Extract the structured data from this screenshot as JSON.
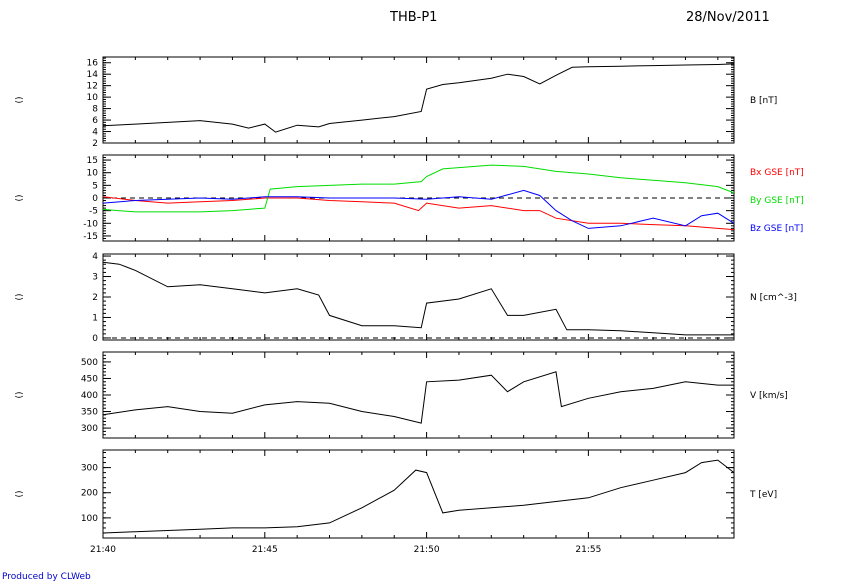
{
  "header": {
    "title": "THB-P1",
    "date": "28/Nov/2011"
  },
  "footer": {
    "credit": "Produced by CLWeb"
  },
  "chart_data": [
    {
      "type": "line",
      "panel": "B",
      "side_label": "()",
      "ylabel": "B [nT]",
      "xlim": [
        "21:40",
        "21:59:30"
      ],
      "ylim": [
        2,
        17
      ],
      "yticks": [
        2,
        4,
        6,
        8,
        10,
        12,
        14,
        16
      ],
      "series": [
        {
          "name": "B [nT]",
          "color": "#000000",
          "x": [
            "21:40",
            "21:41",
            "21:42",
            "21:43",
            "21:44",
            "21:44:30",
            "21:45",
            "21:45:20",
            "21:46",
            "21:46:40",
            "21:47",
            "21:48",
            "21:49",
            "21:49:50",
            "21:50",
            "21:50:30",
            "21:51",
            "21:52",
            "21:52:30",
            "21:53",
            "21:53:30",
            "21:54",
            "21:54:30",
            "21:55",
            "21:56",
            "21:57",
            "21:58",
            "21:59",
            "21:59:30"
          ],
          "y": [
            5.0,
            5.3,
            5.6,
            5.9,
            5.3,
            4.6,
            5.3,
            3.9,
            5.1,
            4.8,
            5.4,
            6.0,
            6.6,
            7.5,
            11.4,
            12.2,
            12.5,
            13.3,
            14.0,
            13.6,
            12.3,
            13.8,
            15.2,
            15.3,
            15.4,
            15.5,
            15.6,
            15.7,
            15.8
          ]
        }
      ]
    },
    {
      "type": "line",
      "panel": "B components",
      "side_label": "()",
      "legend": [
        "Bx GSE [nT]",
        "By GSE [nT]",
        "Bz GSE [nT]"
      ],
      "xlim": [
        "21:40",
        "21:59:30"
      ],
      "ylim": [
        -17,
        17
      ],
      "yticks": [
        -15,
        -10,
        -5,
        0,
        5,
        10,
        15
      ],
      "reference_line": 0,
      "series": [
        {
          "name": "Bx GSE [nT]",
          "color": "#ff0000",
          "x": [
            "21:40",
            "21:41",
            "21:42",
            "21:43",
            "21:44",
            "21:45",
            "21:46",
            "21:47",
            "21:48",
            "21:49",
            "21:49:45",
            "21:50",
            "21:51",
            "21:52",
            "21:53",
            "21:53:30",
            "21:54",
            "21:55",
            "21:56",
            "21:57",
            "21:58",
            "21:59",
            "21:59:30"
          ],
          "y": [
            0.5,
            -1.0,
            -2.0,
            -1.5,
            -1.0,
            0.0,
            0.0,
            -1.0,
            -1.5,
            -2.0,
            -5.0,
            -2.0,
            -4.0,
            -3.0,
            -5.0,
            -5.0,
            -8.0,
            -10.0,
            -10.0,
            -10.5,
            -11.0,
            -12.0,
            -12.5
          ]
        },
        {
          "name": "By GSE [nT]",
          "color": "#00dd00",
          "x": [
            "21:40",
            "21:41",
            "21:42",
            "21:43",
            "21:44",
            "21:45",
            "21:45:10",
            "21:46",
            "21:47",
            "21:48",
            "21:49",
            "21:49:50",
            "21:50",
            "21:50:30",
            "21:51",
            "21:52",
            "21:53",
            "21:54",
            "21:55",
            "21:56",
            "21:57",
            "21:58",
            "21:59",
            "21:59:30"
          ],
          "y": [
            -4.5,
            -5.5,
            -5.5,
            -5.5,
            -5.0,
            -4.0,
            3.5,
            4.5,
            5.0,
            5.5,
            5.5,
            6.5,
            8.5,
            11.5,
            12.0,
            13.0,
            12.5,
            10.5,
            9.5,
            8.0,
            7.0,
            6.0,
            4.5,
            2.0
          ]
        },
        {
          "name": "Bz GSE [nT]",
          "color": "#0000ff",
          "x": [
            "21:40",
            "21:41",
            "21:42",
            "21:43",
            "21:44",
            "21:45",
            "21:46",
            "21:47",
            "21:48",
            "21:49",
            "21:50",
            "21:51",
            "21:52",
            "21:53",
            "21:53:30",
            "21:54",
            "21:54:30",
            "21:55",
            "21:56",
            "21:57",
            "21:58",
            "21:58:30",
            "21:59",
            "21:59:30"
          ],
          "y": [
            -2.0,
            -1.0,
            -0.5,
            0.0,
            -0.5,
            0.5,
            0.5,
            0.0,
            0.0,
            0.0,
            -0.5,
            0.5,
            -0.5,
            3.0,
            1.0,
            -5.0,
            -9.0,
            -12.0,
            -11.0,
            -8.0,
            -11.0,
            -7.0,
            -6.0,
            -10.0
          ]
        }
      ]
    },
    {
      "type": "line",
      "panel": "N",
      "side_label": "()",
      "ylabel": "N [cm^-3]",
      "xlim": [
        "21:40",
        "21:59:30"
      ],
      "ylim": [
        -0.1,
        4.1
      ],
      "yticks": [
        0,
        1,
        2,
        3,
        4
      ],
      "reference_line": 0,
      "series": [
        {
          "name": "N [cm^-3]",
          "color": "#000000",
          "x": [
            "21:40",
            "21:40:30",
            "21:41",
            "21:42",
            "21:43",
            "21:44",
            "21:45",
            "21:46",
            "21:46:40",
            "21:47",
            "21:48",
            "21:49",
            "21:49:50",
            "21:50",
            "21:51",
            "21:52",
            "21:52:30",
            "21:53",
            "21:54",
            "21:54:20",
            "21:55",
            "21:56",
            "21:57",
            "21:58",
            "21:59",
            "21:59:30"
          ],
          "y": [
            3.7,
            3.6,
            3.3,
            2.5,
            2.6,
            2.4,
            2.2,
            2.4,
            2.1,
            1.1,
            0.6,
            0.6,
            0.5,
            1.7,
            1.9,
            2.4,
            1.1,
            1.1,
            1.4,
            0.4,
            0.4,
            0.35,
            0.25,
            0.15,
            0.15,
            0.15
          ]
        }
      ]
    },
    {
      "type": "line",
      "panel": "V",
      "side_label": "()",
      "ylabel": "V [km/s]",
      "xlim": [
        "21:40",
        "21:59:30"
      ],
      "ylim": [
        270,
        530
      ],
      "yticks": [
        300,
        350,
        400,
        450,
        500
      ],
      "series": [
        {
          "name": "V [km/s]",
          "color": "#000000",
          "x": [
            "21:40",
            "21:41",
            "21:42",
            "21:43",
            "21:44",
            "21:45",
            "21:46",
            "21:47",
            "21:48",
            "21:49",
            "21:49:50",
            "21:50",
            "21:51",
            "21:52",
            "21:52:30",
            "21:53",
            "21:54",
            "21:54:10",
            "21:55",
            "21:56",
            "21:57",
            "21:58",
            "21:59",
            "21:59:30"
          ],
          "y": [
            340,
            355,
            365,
            350,
            345,
            370,
            380,
            375,
            350,
            335,
            315,
            440,
            445,
            460,
            410,
            440,
            470,
            365,
            390,
            410,
            420,
            440,
            430,
            430
          ]
        }
      ]
    },
    {
      "type": "line",
      "panel": "T",
      "side_label": "()",
      "ylabel": "T [eV]",
      "xlim": [
        "21:40",
        "21:59:30"
      ],
      "ylim": [
        20,
        370
      ],
      "yticks": [
        100,
        200,
        300
      ],
      "series": [
        {
          "name": "T [eV]",
          "color": "#000000",
          "x": [
            "21:40",
            "21:41",
            "21:42",
            "21:43",
            "21:44",
            "21:45",
            "21:46",
            "21:47",
            "21:48",
            "21:49",
            "21:49:40",
            "21:50",
            "21:50:30",
            "21:51",
            "21:52",
            "21:53",
            "21:54",
            "21:55",
            "21:56",
            "21:57",
            "21:58",
            "21:58:30",
            "21:59",
            "21:59:30"
          ],
          "y": [
            40,
            45,
            50,
            55,
            60,
            60,
            65,
            80,
            140,
            210,
            290,
            280,
            120,
            130,
            140,
            150,
            165,
            180,
            220,
            250,
            280,
            320,
            330,
            280
          ]
        }
      ]
    }
  ]
}
